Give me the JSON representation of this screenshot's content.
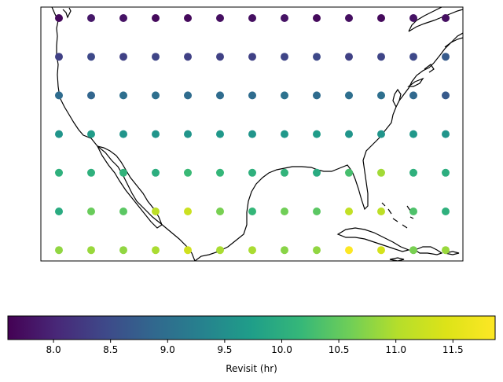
{
  "chart_data": {
    "type": "scatter",
    "title": "",
    "map_region": "Continental United States, Mexico, Gulf of Mexico and Caribbean",
    "colormap": "viridis",
    "grid_lon": [
      -125,
      -120,
      -115,
      -110,
      -105,
      -100,
      -95,
      -90,
      -85,
      -80,
      -75,
      -70,
      -65
    ],
    "grid_lat": [
      50,
      45,
      40,
      35,
      30,
      25,
      20
    ],
    "revisit_hr": [
      [
        7.7,
        7.85,
        7.8,
        7.7,
        7.7,
        7.75,
        7.75,
        7.8,
        7.7,
        7.75,
        7.7,
        7.8,
        7.75
      ],
      [
        8.35,
        8.45,
        8.35,
        8.4,
        8.35,
        8.35,
        8.35,
        8.4,
        8.45,
        8.35,
        8.4,
        8.45,
        8.7
      ],
      [
        8.95,
        8.85,
        9.0,
        9.0,
        8.95,
        8.95,
        8.95,
        9.05,
        8.95,
        9.0,
        9.0,
        8.9,
        8.7
      ],
      [
        9.6,
        9.7,
        9.6,
        9.6,
        9.6,
        9.65,
        9.6,
        9.65,
        9.7,
        9.6,
        9.6,
        9.65,
        9.6
      ],
      [
        10.05,
        10.05,
        10.1,
        10.0,
        10.2,
        10.15,
        10.05,
        10.1,
        9.95,
        10.3,
        10.9,
        10.05,
        10.0
      ],
      [
        9.95,
        10.55,
        10.45,
        11.1,
        11.25,
        10.65,
        10.15,
        10.6,
        10.45,
        11.15,
        11.1,
        10.35,
        10.05
      ],
      [
        10.8,
        10.85,
        10.8,
        10.95,
        11.3,
        10.95,
        10.95,
        10.75,
        10.8,
        11.85,
        11.35,
        10.65,
        10.85
      ]
    ],
    "clim": [
      7.6,
      11.87
    ],
    "colorbar": {
      "label": "Revisit (hr)",
      "orientation": "horizontal",
      "ticks": [
        8.0,
        8.5,
        9.0,
        9.5,
        10.0,
        10.5,
        11.0,
        11.5
      ],
      "tick_labels": [
        "8.0",
        "8.5",
        "9.0",
        "9.5",
        "10.0",
        "10.5",
        "11.0",
        "11.5"
      ]
    }
  }
}
